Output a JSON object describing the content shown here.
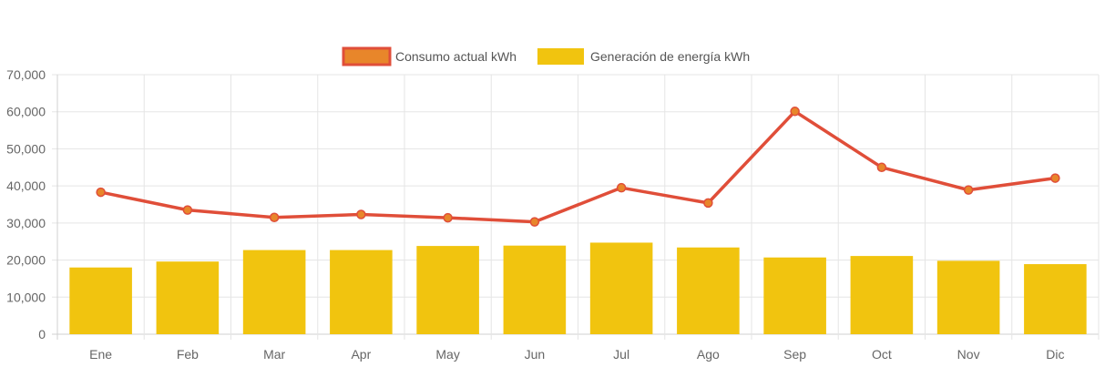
{
  "chart_data": {
    "type": "bar",
    "categories": [
      "Ene",
      "Feb",
      "Mar",
      "Apr",
      "May",
      "Jun",
      "Jul",
      "Ago",
      "Sep",
      "Oct",
      "Nov",
      "Dic"
    ],
    "series": [
      {
        "name": "Consumo actual kWh",
        "type": "line",
        "color": "#e04e39",
        "point_color": "#e8862a",
        "values": [
          38300,
          33500,
          31500,
          32300,
          31400,
          30300,
          39500,
          35400,
          60100,
          45000,
          38900,
          42100
        ]
      },
      {
        "name": "Generación de energía kWh",
        "type": "bar",
        "color": "#f1c40f",
        "values": [
          18000,
          19600,
          22700,
          22700,
          23800,
          23900,
          24700,
          23400,
          20700,
          21100,
          19800,
          18900
        ]
      }
    ],
    "yticks": [
      "0",
      "10,000",
      "20,000",
      "30,000",
      "40,000",
      "50,000",
      "60,000",
      "70,000"
    ],
    "ylim": [
      0,
      70000
    ],
    "grid": true,
    "legend_position": "top-center"
  }
}
